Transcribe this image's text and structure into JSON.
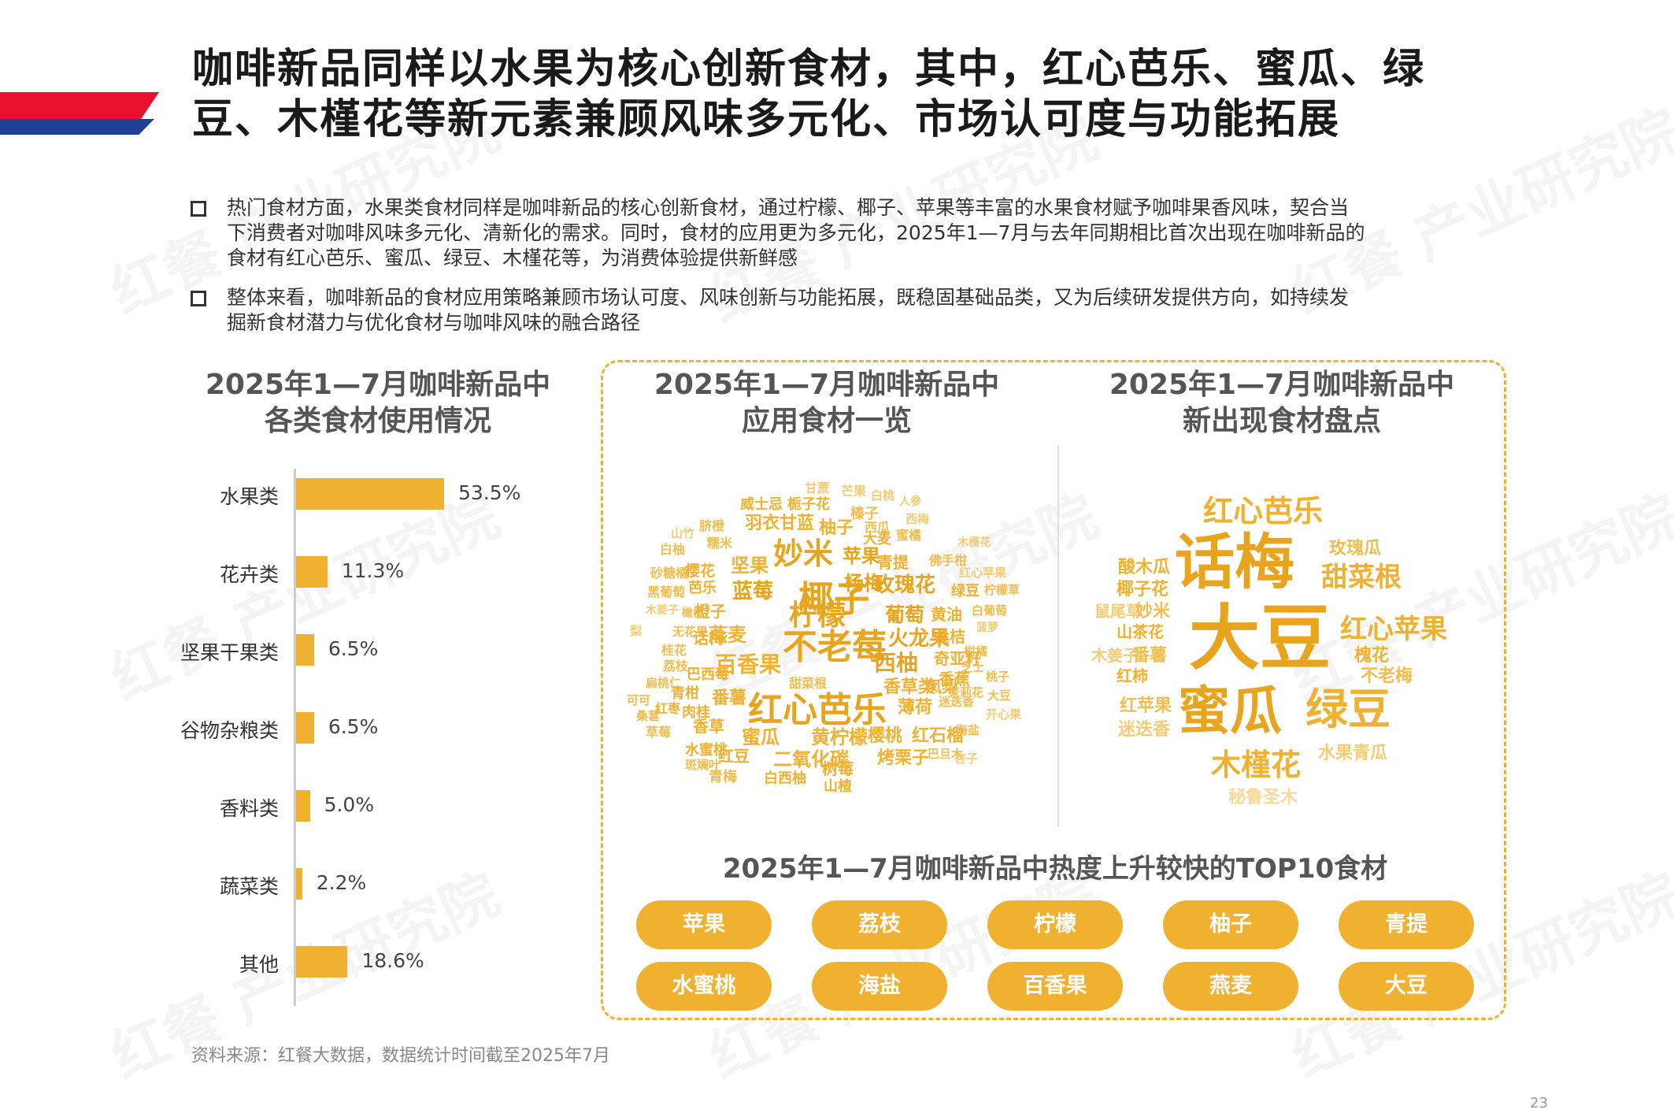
{
  "header": {
    "title_line1": "咖啡新品同样以水果为核心创新食材，其中，红心芭乐、蜜瓜、绿",
    "title_line2": "豆、木槿花等新元素兼顾风味多元化、市场认可度与功能拓展",
    "brand_colors": {
      "red": "#e8102c",
      "blue": "#1f3f93",
      "accent": "#f0b130"
    }
  },
  "bullets": [
    {
      "lines": [
        "热门食材方面，水果类食材同样是咖啡新品的核心创新食材，通过柠檬、椰子、苹果等丰富的水果食材赋予咖啡果香风味，契合当",
        "下消费者对咖啡风味多元化、清新化的需求。同时，食材的应用更为多元化，2025年1—7月与去年同期相比首次出现在咖啡新品的",
        "食材有红心芭乐、蜜瓜、绿豆、木槿花等，为消费体验提供新鲜感"
      ]
    },
    {
      "lines": [
        "整体来看，咖啡新品的食材应用策略兼顾市场认可度、风味创新与功能拓展，既稳固基础品类，又为后续研发提供方向，如持续发",
        "掘新食材潜力与优化食材与咖啡风味的融合路径"
      ]
    }
  ],
  "left_section": {
    "title_line1": "2025年1—7月咖啡新品中",
    "title_line2": "各类食材使用情况"
  },
  "chart_data": {
    "type": "bar",
    "orientation": "horizontal",
    "categories": [
      "水果类",
      "花卉类",
      "坚果干果类",
      "谷物杂粮类",
      "香料类",
      "蔬菜类",
      "其他"
    ],
    "values": [
      53.5,
      11.3,
      6.5,
      6.5,
      5.0,
      2.2,
      18.6
    ],
    "value_labels": [
      "53.5%",
      "11.3%",
      "6.5%",
      "6.5%",
      "5.0%",
      "2.2%",
      "18.6%"
    ],
    "unit": "%",
    "color": "#f0b130"
  },
  "middle_section": {
    "title_line1": "2025年1—7月咖啡新品中",
    "title_line2": "应用食材一览"
  },
  "right_section": {
    "title_line1": "2025年1—7月咖啡新品中",
    "title_line2": "新出现食材盘点"
  },
  "wordcloud_all": [
    "甘蔗",
    "芒果",
    "白桃",
    "人参",
    "威士忌",
    "栀子花",
    "榛子",
    "西瓜",
    "西梅",
    "山竹",
    "脐橙",
    "羽衣甘蓝",
    "柚子",
    "大麦",
    "蜜橘",
    "木槿花",
    "白柚",
    "糯米",
    "妙米",
    "苹果",
    "青提",
    "佛手柑",
    "砂糖橘",
    "樱花",
    "坚果",
    "杨梅",
    "红心苹果",
    "黑葡萄",
    "芭乐",
    "蓝莓",
    "椰子",
    "玫瑰花",
    "绿豆",
    "柠檬草",
    "木姜子",
    "橄榄",
    "橙子",
    "葡萄",
    "黄油",
    "白葡萄",
    "梨",
    "无花果",
    "燕麦",
    "柠檬",
    "菠萝",
    "话梅",
    "桂花",
    "不老莓",
    "火龙果",
    "金桔",
    "柑橘",
    "荔枝",
    "百香果",
    "西柚",
    "奇亚籽",
    "芝士",
    "扁桃仁",
    "巴西莓",
    "甜菜根",
    "香蕉",
    "桃子",
    "可可",
    "桑葚",
    "青柑",
    "番薯",
    "香草类",
    "凤梨",
    "茉莉花",
    "大豆",
    "红枣",
    "肉桂",
    "红心芭乐",
    "薄荷",
    "迷迭香",
    "开心果",
    "草莓",
    "香草",
    "蜜瓜",
    "黄柠檬",
    "樱桃",
    "红石榴",
    "海盐",
    "水蜜桃",
    "红豆",
    "二氧化碳",
    "树莓",
    "烤栗子",
    "巴旦木",
    "杏子",
    "斑斓叶",
    "青梅",
    "白西柚",
    "山楂"
  ],
  "wordcloud_new": [
    "红心芭乐",
    "话梅",
    "玫瑰瓜",
    "酸木瓜",
    "甜菜根",
    "椰子花",
    "鼠尾草",
    "妙米",
    "红心苹果",
    "山茶花",
    "大豆",
    "槐花",
    "木姜子",
    "番薯",
    "红柿",
    "不老梅",
    "红苹果",
    "蜜瓜",
    "绿豆",
    "迷迭香",
    "水果青瓜",
    "木槿花",
    "秘鲁圣木"
  ],
  "top10": {
    "title": "2025年1—7月咖啡新品中热度上升较快的TOP10食材",
    "items": [
      "苹果",
      "荔枝",
      "柠檬",
      "柚子",
      "青提",
      "水蜜桃",
      "海盐",
      "百香果",
      "燕麦",
      "大豆"
    ]
  },
  "watermark": "红餐 产业研究院",
  "source": "资料来源：红餐大数据，数据统计时间截至2025年7月",
  "page_number": "23"
}
